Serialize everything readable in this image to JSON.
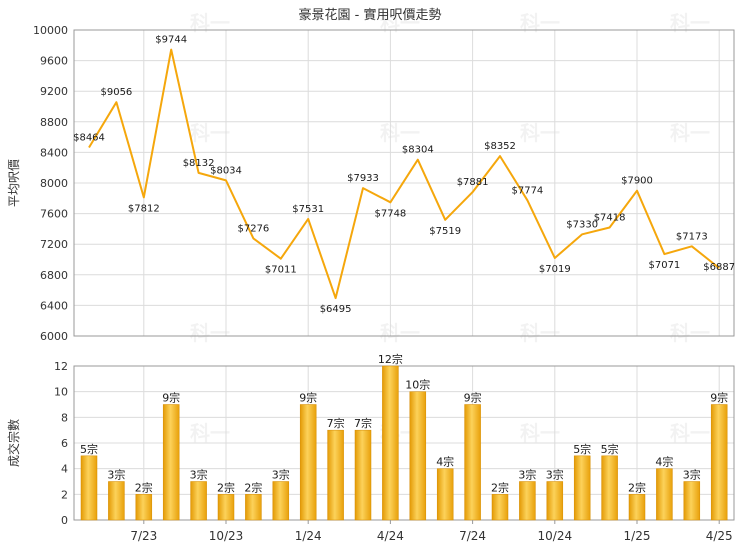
{
  "chart_data": [
    {
      "type": "line",
      "title": "豪景花園 - 實用呎價走勢",
      "ylabel": "平均呎價",
      "ylim": [
        6000,
        10000
      ],
      "yticks": [
        6000,
        6400,
        6800,
        7200,
        7600,
        8000,
        8400,
        8800,
        9200,
        9600,
        10000
      ],
      "grid": true,
      "color": "#F5A70C",
      "series": [
        {
          "values": [
            8464,
            9056,
            7812,
            9744,
            8132,
            8034,
            7276,
            7011,
            7531,
            6495,
            7933,
            7748,
            8304,
            7519,
            7881,
            8352,
            7774,
            7019,
            7330,
            7418,
            7900,
            7071,
            7173,
            6887
          ],
          "labels": [
            "$8464",
            "$9056",
            "$7812",
            "$9744",
            "$8132",
            "$8034",
            "$7276",
            "$7011",
            "$7531",
            "$6495",
            "$7933",
            "$7748",
            "$8304",
            "$7519",
            "$7881",
            "$8352",
            "$7774",
            "$7019",
            "$7330",
            "$7418",
            "$7900",
            "$7071",
            "$7173",
            "$6887"
          ]
        }
      ]
    },
    {
      "type": "bar",
      "ylabel": "成交宗數",
      "ylim": [
        0,
        12
      ],
      "yticks": [
        0,
        2,
        4,
        6,
        8,
        10,
        12
      ],
      "grid": true,
      "color": "#F5A70C",
      "series": [
        {
          "values": [
            5,
            3,
            2,
            9,
            3,
            2,
            2,
            3,
            9,
            7,
            7,
            12,
            10,
            4,
            9,
            2,
            3,
            3,
            5,
            5,
            2,
            4,
            3,
            9
          ],
          "labels": [
            "5宗",
            "3宗",
            "2宗",
            "9宗",
            "3宗",
            "2宗",
            "2宗",
            "3宗",
            "9宗",
            "7宗",
            "7宗",
            "12宗",
            "10宗",
            "4宗",
            "9宗",
            "2宗",
            "3宗",
            "3宗",
            "5宗",
            "5宗",
            "2宗",
            "4宗",
            "3宗",
            "9宗"
          ]
        }
      ],
      "xticks": [
        {
          "index": 2,
          "label": "7/23"
        },
        {
          "index": 5,
          "label": "10/23"
        },
        {
          "index": 8,
          "label": "1/24"
        },
        {
          "index": 11,
          "label": "4/24"
        },
        {
          "index": 14,
          "label": "7/24"
        },
        {
          "index": 17,
          "label": "10/24"
        },
        {
          "index": 20,
          "label": "1/25"
        },
        {
          "index": 23,
          "label": "4/25"
        }
      ]
    }
  ],
  "watermark": "科一"
}
